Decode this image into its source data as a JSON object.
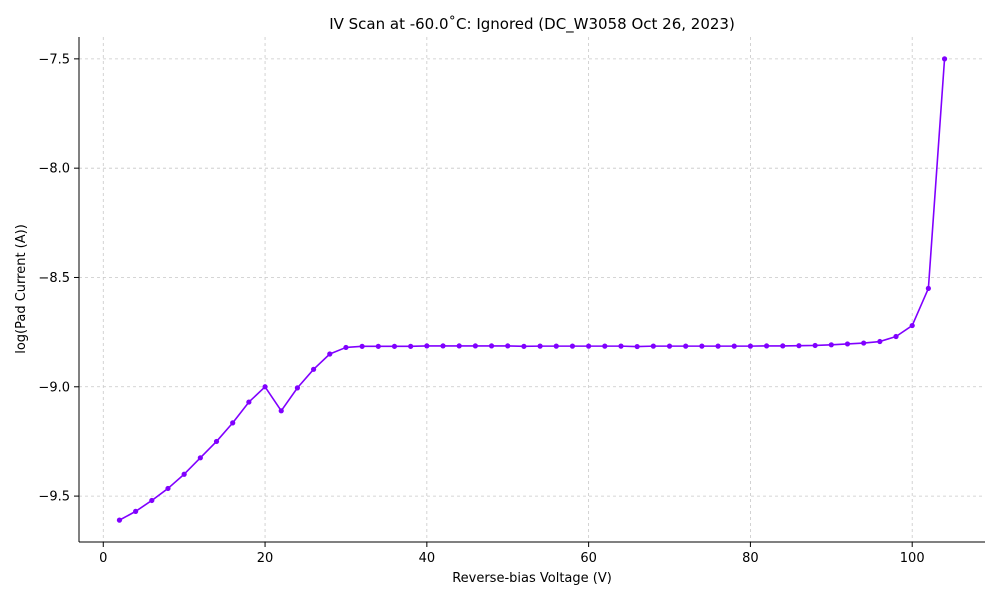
{
  "chart_data": {
    "type": "line",
    "title": "IV Scan at -60.0˚C: Ignored (DC_W3058 Oct 26, 2023)",
    "xlabel": "Reverse-bias Voltage (V)",
    "ylabel": "log(Pad Current (A))",
    "xlim": [
      -3,
      109
    ],
    "ylim": [
      -9.71,
      -7.4
    ],
    "grid": true,
    "xticks": [
      0,
      20,
      40,
      60,
      80,
      100
    ],
    "xtick_labels": [
      "0",
      "20",
      "40",
      "60",
      "80",
      "100"
    ],
    "yticks": [
      -9.5,
      -9.0,
      -8.5,
      -8.0,
      -7.5
    ],
    "ytick_labels": [
      "−9.5",
      "−9.0",
      "−8.5",
      "−8.0",
      "−7.5"
    ],
    "series": [
      {
        "color": "#8000ff",
        "x": [
          2,
          4,
          6,
          8,
          10,
          12,
          14,
          16,
          18,
          20,
          22,
          24,
          26,
          28,
          30,
          32,
          34,
          36,
          38,
          40,
          42,
          44,
          46,
          48,
          50,
          52,
          54,
          56,
          58,
          60,
          62,
          64,
          66,
          68,
          70,
          72,
          74,
          76,
          78,
          80,
          82,
          84,
          86,
          88,
          90,
          92,
          94,
          96,
          98,
          100,
          102,
          104
        ],
        "y": [
          -9.61,
          -9.57,
          -9.52,
          -9.465,
          -9.4,
          -9.325,
          -9.25,
          -9.165,
          -9.07,
          -9.0,
          -9.11,
          -9.005,
          -8.92,
          -8.85,
          -8.82,
          -8.815,
          -8.815,
          -8.815,
          -8.815,
          -8.813,
          -8.813,
          -8.813,
          -8.813,
          -8.813,
          -8.813,
          -8.815,
          -8.814,
          -8.814,
          -8.814,
          -8.814,
          -8.814,
          -8.814,
          -8.816,
          -8.814,
          -8.814,
          -8.814,
          -8.814,
          -8.814,
          -8.814,
          -8.814,
          -8.813,
          -8.813,
          -8.812,
          -8.811,
          -8.808,
          -8.804,
          -8.8,
          -8.793,
          -8.77,
          -8.72,
          -8.55,
          -7.5
        ]
      }
    ]
  }
}
